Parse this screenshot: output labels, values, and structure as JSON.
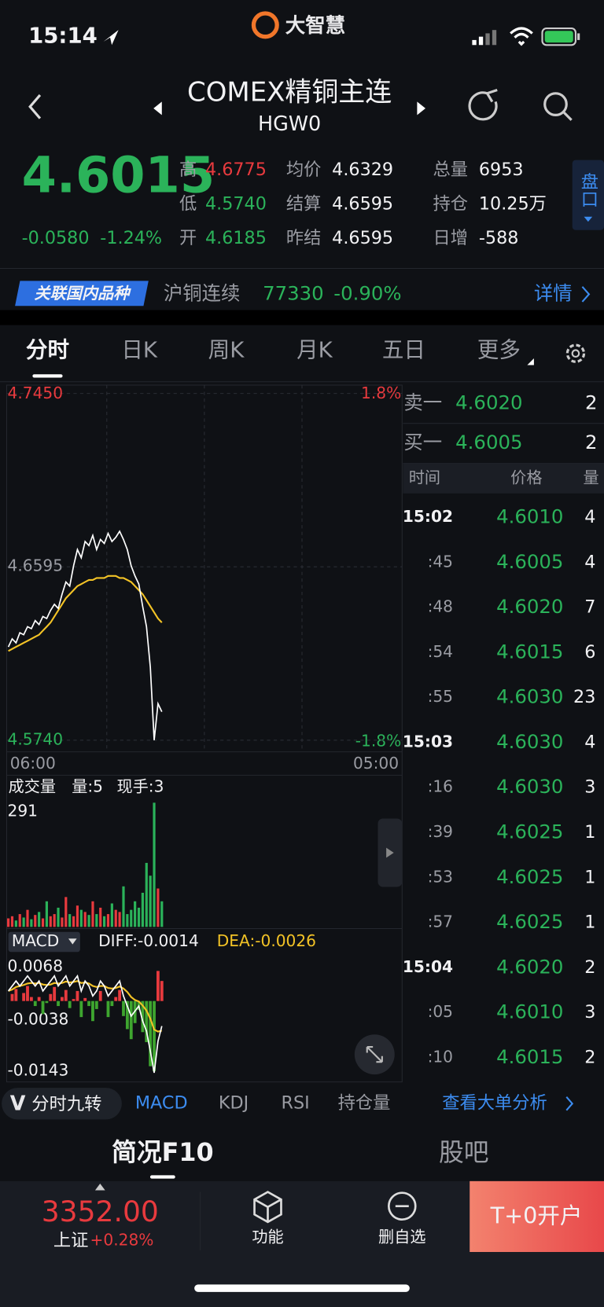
{
  "status_bar": {
    "time": "15:14",
    "app": "大智慧"
  },
  "header": {
    "title": "COMEX精铜主连",
    "code": "HGW0"
  },
  "quote": {
    "price": "4.6015",
    "change": "-0.0580",
    "change_pct": "-1.24%",
    "stats": [
      {
        "label": "高",
        "value": "4.6775"
      },
      {
        "label": "低",
        "value": "4.5740"
      },
      {
        "label": "开",
        "value": "4.6185"
      },
      {
        "label": "均价",
        "value": "4.6329"
      },
      {
        "label": "结算",
        "value": "4.6595"
      },
      {
        "label": "昨结",
        "value": "4.6595"
      },
      {
        "label": "总量",
        "value": "6953"
      },
      {
        "label": "持仓",
        "value": "10.25万"
      },
      {
        "label": "日增",
        "value": "-588"
      }
    ],
    "side_tab": "盘口"
  },
  "related": {
    "badge": "关联国内品种",
    "name": "沪铜连续",
    "price": "77330",
    "change": "-0.90%",
    "link": "详情"
  },
  "tabs": [
    "分时",
    "日K",
    "周K",
    "月K",
    "五日",
    "更多"
  ],
  "price_chart": {
    "ylim": [
      4.574,
      4.745
    ],
    "yticks": [
      {
        "value": 4.745,
        "label": "4.7450"
      },
      {
        "value": 4.6595,
        "label": "4.6595"
      },
      {
        "value": 4.574,
        "label": "4.5740"
      }
    ],
    "pct_labels": [
      "1.8%",
      "-1.8%"
    ],
    "x_labels": [
      "06:00",
      "05:00"
    ],
    "price": [
      4.62,
      4.624,
      4.622,
      4.627,
      4.626,
      4.63,
      4.629,
      4.633,
      4.631,
      4.635,
      4.634,
      4.638,
      4.641,
      4.639,
      4.646,
      4.652,
      4.65,
      4.66,
      4.668,
      4.664,
      4.672,
      4.67,
      4.675,
      4.668,
      4.673,
      4.671,
      4.676,
      4.672,
      4.674,
      4.677,
      4.673,
      4.668,
      4.66,
      4.655,
      4.651,
      4.64,
      4.63,
      4.61,
      4.574,
      4.592,
      4.588
    ],
    "average": [
      4.618,
      4.619,
      4.62,
      4.621,
      4.622,
      4.623,
      4.624,
      4.625,
      4.626,
      4.628,
      4.63,
      4.632,
      4.635,
      4.638,
      4.641,
      4.644,
      4.646,
      4.648,
      4.65,
      4.651,
      4.652,
      4.653,
      4.653,
      4.654,
      4.654,
      4.654,
      4.655,
      4.655,
      4.655,
      4.654,
      4.654,
      4.653,
      4.652,
      4.65,
      4.648,
      4.646,
      4.643,
      4.64,
      4.637,
      4.634,
      4.632
    ]
  },
  "volume": {
    "title": "成交量",
    "volume_label": "量:5",
    "hand_label": "现手:3",
    "ylim": [
      0,
      291
    ],
    "yticks": [
      291
    ],
    "values": [
      20,
      25,
      15,
      30,
      22,
      40,
      18,
      28,
      35,
      20,
      60,
      25,
      30,
      45,
      22,
      70,
      30,
      25,
      50,
      40,
      35,
      28,
      60,
      30,
      45,
      25,
      30,
      55,
      40,
      35,
      95,
      30,
      40,
      60,
      45,
      80,
      150,
      120,
      291,
      90,
      60
    ]
  },
  "macd": {
    "name": "MACD",
    "diff_label": "DIFF:-0.0014",
    "dea_label": "DEA:-0.0026",
    "ylim": [
      -0.0143,
      0.0068
    ],
    "yticks": [
      0.0068,
      -0.0038,
      -0.0143
    ],
    "diff": [
      0.002,
      0.003,
      0.004,
      0.003,
      0.004,
      0.005,
      0.004,
      0.003,
      0.004,
      0.002,
      0.003,
      0.004,
      0.005,
      0.003,
      0.004,
      0.005,
      0.003,
      0.004,
      0.005,
      0.002,
      0.004,
      0.003,
      0.001,
      0.002,
      0.004,
      0.003,
      0.001,
      0.002,
      0.003,
      0.004,
      0.001,
      -0.001,
      -0.003,
      -0.002,
      -0.001,
      -0.004,
      -0.006,
      -0.01,
      -0.0143,
      -0.008,
      -0.005
    ],
    "dea": [
      0.002,
      0.0023,
      0.0028,
      0.003,
      0.0032,
      0.0035,
      0.0036,
      0.0035,
      0.0036,
      0.0033,
      0.0032,
      0.0033,
      0.0036,
      0.0035,
      0.0036,
      0.0039,
      0.0037,
      0.0038,
      0.004,
      0.0036,
      0.0037,
      0.0035,
      0.003,
      0.0028,
      0.003,
      0.003,
      0.0026,
      0.0025,
      0.0026,
      0.0029,
      0.0025,
      0.0018,
      0.0008,
      0.0002,
      -0.0001,
      -0.0009,
      -0.0019,
      -0.0035,
      -0.0057,
      -0.0061,
      -0.0059
    ],
    "histogram": [
      0,
      0.0014,
      0.0024,
      0,
      0.0016,
      0.003,
      0.0008,
      -0.001,
      0.0008,
      -0.0026,
      -0.0004,
      0.0014,
      0.0028,
      -0.001,
      0.0008,
      0.0022,
      -0.0014,
      0.0004,
      0.002,
      -0.0032,
      0.0006,
      -0.001,
      -0.004,
      -0.0016,
      0.002,
      0,
      -0.0032,
      -0.001,
      0.0008,
      0.0022,
      -0.003,
      -0.0056,
      -0.0076,
      -0.0044,
      -0.0018,
      -0.0062,
      -0.0082,
      -0.013,
      -0.014,
      0.006,
      0.004
    ]
  },
  "order_book": [
    {
      "side": "卖一",
      "price": "4.6020",
      "qty": "2"
    },
    {
      "side": "买一",
      "price": "4.6005",
      "qty": "2"
    }
  ],
  "trades": {
    "headers": [
      "时间",
      "价格",
      "量"
    ],
    "rows": [
      {
        "time": "15:02",
        "price": "4.6010",
        "qty": "4"
      },
      {
        "time": ":45",
        "price": "4.6005",
        "qty": "4"
      },
      {
        "time": ":48",
        "price": "4.6020",
        "qty": "7"
      },
      {
        "time": ":54",
        "price": "4.6015",
        "qty": "6"
      },
      {
        "time": ":55",
        "price": "4.6030",
        "qty": "23"
      },
      {
        "time": "15:03",
        "price": "4.6030",
        "qty": "4"
      },
      {
        "time": ":16",
        "price": "4.6030",
        "qty": "3"
      },
      {
        "time": ":39",
        "price": "4.6025",
        "qty": "1"
      },
      {
        "time": ":53",
        "price": "4.6025",
        "qty": "1"
      },
      {
        "time": ":57",
        "price": "4.6025",
        "qty": "1"
      },
      {
        "time": "15:04",
        "price": "4.6020",
        "qty": "2"
      },
      {
        "time": ":05",
        "price": "4.6010",
        "qty": "3"
      },
      {
        "time": ":10",
        "price": "4.6015",
        "qty": "2"
      }
    ]
  },
  "indicators": {
    "nine_turn_icon": "V",
    "nine_turn": "分时九转",
    "items": [
      "MACD",
      "KDJ",
      "RSI",
      "持仓量"
    ],
    "link": "查看大单分析"
  },
  "bottom_tabs": [
    "简况F10",
    "股吧"
  ],
  "footer": {
    "index_value": "3352.00",
    "index_name": "上证",
    "index_change": "+0.28%",
    "buttons": [
      "功能",
      "删自选"
    ],
    "cta": "T+0开户"
  }
}
